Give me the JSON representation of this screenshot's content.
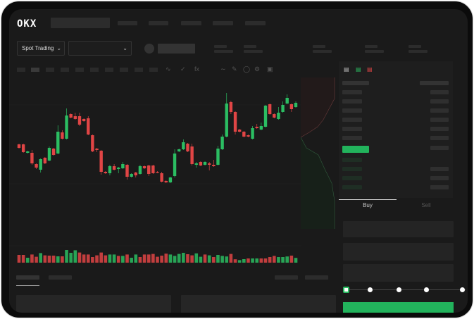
{
  "header": {
    "logo": "OKX"
  },
  "toolbar": {
    "market_select": "Spot Trading",
    "pair_select": ""
  },
  "colors": {
    "up": "#2bbd62",
    "down": "#e04545",
    "bg": "#1a1a1a",
    "accent": "#22b35c"
  },
  "icons": [
    "chevron-down-icon",
    "indicator-icon",
    "line-tool-icon",
    "pencil-icon",
    "circle-icon",
    "settings-icon",
    "expand-icon",
    "orderbook-both-icon",
    "orderbook-bids-icon",
    "orderbook-asks-icon"
  ],
  "trade": {
    "buy_tab": "Buy",
    "sell_tab": "Sell",
    "active_tab": "Buy",
    "leverage_slider": 0
  },
  "chart_data": {
    "type": "candlestick",
    "candles": [
      [
        97,
        92,
        98,
        91
      ],
      [
        97,
        86,
        98,
        85
      ],
      [
        85,
        87,
        88,
        84
      ],
      [
        85,
        70,
        89,
        68
      ],
      [
        69,
        64,
        70,
        62
      ],
      [
        61,
        76,
        77,
        57
      ],
      [
        78,
        70,
        79,
        69
      ],
      [
        74,
        92,
        94,
        73
      ],
      [
        91,
        82,
        92,
        81
      ],
      [
        84,
        115,
        124,
        83
      ],
      [
        114,
        105,
        117,
        104
      ],
      [
        105,
        138,
        148,
        104
      ],
      [
        140,
        135,
        141,
        134
      ],
      [
        137,
        133,
        142,
        132
      ],
      [
        137,
        125,
        142,
        123
      ],
      [
        133,
        130,
        134,
        129
      ],
      [
        134,
        111,
        137,
        110
      ],
      [
        110,
        87,
        111,
        86
      ],
      [
        91,
        89,
        92,
        86
      ],
      [
        88,
        58,
        89,
        54
      ],
      [
        58,
        56,
        59,
        55
      ],
      [
        56,
        66,
        68,
        53
      ],
      [
        66,
        61,
        69,
        60
      ],
      [
        62,
        64,
        65,
        56
      ],
      [
        63,
        69,
        72,
        62
      ],
      [
        68,
        51,
        69,
        47
      ],
      [
        51,
        55,
        56,
        50
      ],
      [
        57,
        53,
        58,
        50
      ],
      [
        55,
        66,
        68,
        54
      ],
      [
        66,
        63,
        67,
        62
      ],
      [
        67,
        55,
        68,
        52
      ],
      [
        67,
        56,
        68,
        55
      ],
      [
        58,
        57,
        59,
        56
      ],
      [
        56,
        44,
        58,
        43
      ],
      [
        45,
        43,
        46,
        42
      ],
      [
        43,
        50,
        51,
        42
      ],
      [
        52,
        84,
        90,
        50
      ],
      [
        87,
        90,
        91,
        86
      ],
      [
        90,
        100,
        104,
        89
      ],
      [
        98,
        87,
        99,
        86
      ],
      [
        94,
        69,
        98,
        67
      ],
      [
        68,
        70,
        72,
        64
      ],
      [
        72,
        67,
        73,
        66
      ],
      [
        68,
        72,
        73,
        67
      ],
      [
        70,
        68,
        72,
        60
      ],
      [
        68,
        66,
        75,
        65
      ],
      [
        68,
        91,
        95,
        67
      ],
      [
        90,
        108,
        111,
        89
      ],
      [
        108,
        155,
        170,
        107
      ],
      [
        157,
        143,
        159,
        140
      ],
      [
        143,
        115,
        144,
        111
      ],
      [
        118,
        115,
        119,
        114
      ],
      [
        115,
        108,
        116,
        107
      ],
      [
        110,
        108,
        111,
        107
      ],
      [
        105,
        120,
        123,
        104
      ],
      [
        122,
        120,
        126,
        119
      ],
      [
        118,
        123,
        128,
        117
      ],
      [
        122,
        152,
        153,
        121
      ],
      [
        154,
        140,
        155,
        139
      ],
      [
        140,
        135,
        141,
        134
      ],
      [
        133,
        142,
        150,
        132
      ],
      [
        143,
        153,
        158,
        142
      ],
      [
        155,
        163,
        168,
        154
      ],
      [
        154,
        147,
        155,
        143
      ],
      [
        150,
        156,
        158,
        149
      ]
    ],
    "volume": [
      55,
      55,
      35,
      58,
      42,
      68,
      52,
      50,
      50,
      45,
      45,
      90,
      70,
      88,
      72,
      58,
      58,
      40,
      52,
      72,
      52,
      58,
      58,
      48,
      48,
      58,
      35,
      58,
      40,
      58,
      58,
      62,
      42,
      50,
      64,
      58,
      48,
      62,
      70,
      60,
      52,
      66,
      42,
      58,
      52,
      40,
      55,
      48,
      44,
      62,
      24,
      18,
      25,
      30,
      30,
      30,
      30,
      30,
      40,
      48,
      40,
      40,
      44,
      50,
      34
    ],
    "volume_up": [
      0,
      0,
      1,
      0,
      0,
      1,
      0,
      0,
      0,
      1,
      0,
      1,
      1,
      1,
      0,
      0,
      0,
      0,
      0,
      0,
      0,
      1,
      1,
      0,
      1,
      0,
      1,
      1,
      0,
      0,
      0,
      0,
      0,
      0,
      0,
      1,
      1,
      1,
      1,
      0,
      0,
      1,
      1,
      0,
      1,
      0,
      1,
      1,
      1,
      0,
      0,
      1,
      1,
      0,
      1,
      1,
      0,
      0,
      0,
      0,
      1,
      1,
      1,
      0,
      1
    ]
  }
}
